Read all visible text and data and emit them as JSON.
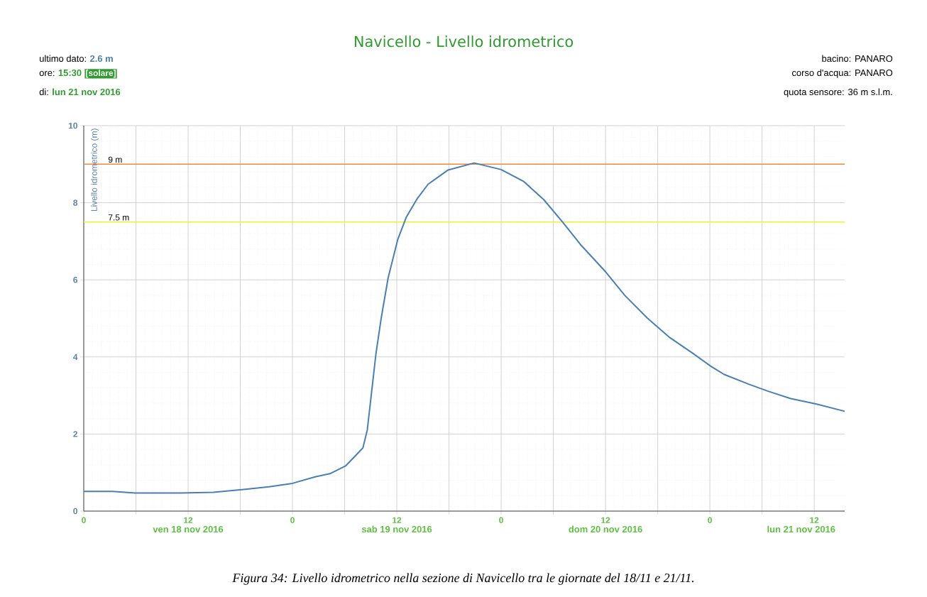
{
  "chart_data": {
    "type": "line",
    "title": "Navicello - Livello idrometrico",
    "ylabel": "Livello idrometrico (m)",
    "annotations": [
      "ultimo dato:",
      "2.6 m",
      "ore:",
      "15:30",
      "[solare]",
      "di:",
      "lun 21 nov 2016",
      "bacino: PANARO",
      "corso d'acqua: PANARO",
      "quota sensore: 36 m s.l.m.",
      "ven 18 nov 2016",
      "sab 19 nov 2016",
      "dom 20 nov 2016",
      "lun 21 nov 2016",
      "Figura 34: Livello idrometrico nella sezione di Navicello tra le giornate del 18/11 e 21/11."
    ],
    "x": [
      "2016-11-18T00:00",
      "2016-11-18T03:18",
      "2016-11-18T05:54",
      "2016-11-18T11:06",
      "2016-11-18T14:54",
      "2016-11-18T18:24",
      "2016-11-18T21:18",
      "2016-11-19T00:00",
      "2016-11-19T02:36",
      "2016-11-19T04:18",
      "2016-11-19T06:06",
      "2016-11-19T07:18",
      "2016-11-19T08:06",
      "2016-11-19T08:36",
      "2016-11-19T09:00",
      "2016-11-19T09:36",
      "2016-11-19T10:12",
      "2016-11-19T11:00",
      "2016-11-19T12:06",
      "2016-11-19T13:06",
      "2016-11-19T14:18",
      "2016-11-19T15:36",
      "2016-11-19T17:54",
      "2016-11-19T20:54",
      "2016-11-20T00:00",
      "2016-11-20T02:36",
      "2016-11-20T04:54",
      "2016-11-20T07:06",
      "2016-11-20T09:06",
      "2016-11-20T12:00",
      "2016-11-20T14:12",
      "2016-11-20T16:48",
      "2016-11-20T19:24",
      "2016-11-20T22:00",
      "2016-11-21T00:06",
      "2016-11-21T01:36",
      "2016-11-21T04:30",
      "2016-11-21T06:42",
      "2016-11-21T09:18",
      "2016-11-21T12:12",
      "2016-11-21T15:30"
    ],
    "values": [
      0.51,
      0.51,
      0.47,
      0.47,
      0.49,
      0.56,
      0.63,
      0.72,
      0.89,
      0.97,
      1.17,
      1.45,
      1.64,
      2.1,
      2.89,
      4.08,
      5.0,
      6.05,
      7.04,
      7.63,
      8.09,
      8.48,
      8.85,
      9.03,
      8.86,
      8.55,
      8.08,
      7.49,
      6.92,
      6.21,
      5.6,
      5.01,
      4.5,
      4.1,
      3.76,
      3.55,
      3.29,
      3.11,
      2.92,
      2.78,
      2.59
    ],
    "color": "#4a7fb3",
    "xlim": [
      "2016-11-18T00:00",
      "2016-11-21T15:30"
    ],
    "xticks": [
      {
        "value": "2016-11-18T00:00",
        "label": "0"
      },
      {
        "value": "2016-11-18T06:00",
        "label": null
      },
      {
        "value": "2016-11-18T12:00",
        "label": "12"
      },
      {
        "value": "2016-11-18T18:00",
        "label": null
      },
      {
        "value": "2016-11-19T00:00",
        "label": "0"
      },
      {
        "value": "2016-11-19T06:00",
        "label": null
      },
      {
        "value": "2016-11-19T12:00",
        "label": "12"
      },
      {
        "value": "2016-11-19T18:00",
        "label": null
      },
      {
        "value": "2016-11-20T00:00",
        "label": "0"
      },
      {
        "value": "2016-11-20T06:00",
        "label": null
      },
      {
        "value": "2016-11-20T12:00",
        "label": "12"
      },
      {
        "value": "2016-11-20T18:00",
        "label": null
      },
      {
        "value": "2016-11-21T00:00",
        "label": "0"
      },
      {
        "value": "2016-11-21T06:00",
        "label": null
      },
      {
        "value": "2016-11-21T12:00",
        "label": "12"
      }
    ],
    "ylim": [
      0,
      10
    ],
    "yticks": [
      0,
      2,
      4,
      6,
      8,
      10
    ],
    "grid": true,
    "ref_lines": [
      {
        "axis": "y",
        "value": 9,
        "label": "9 m",
        "color": "#f0883e"
      },
      {
        "axis": "y",
        "value": 7.5,
        "label": "7.5 m",
        "color": "#f2ee3a"
      }
    ]
  }
}
